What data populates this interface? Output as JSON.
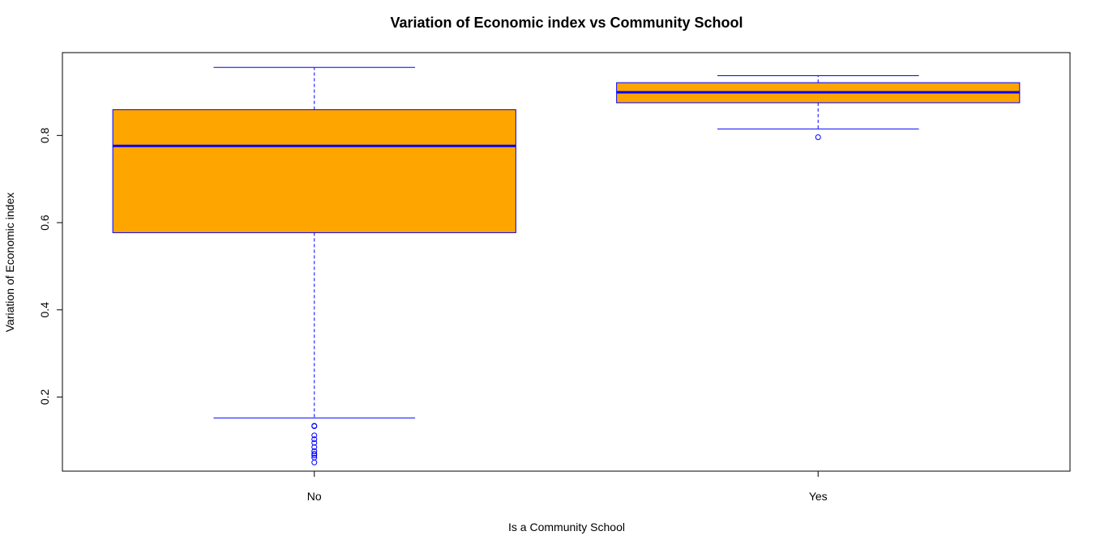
{
  "chart_data": {
    "type": "box",
    "title": "Variation of Economic index vs Community School",
    "xlabel": "Is a Community School",
    "ylabel": "Variation of Economic index",
    "categories": [
      "No",
      "Yes"
    ],
    "ylim": [
      0.03,
      0.99
    ],
    "yticks": [
      0.2,
      0.4,
      0.6,
      0.8
    ],
    "ytick_labels": [
      "0.2",
      "0.4",
      "0.6",
      "0.8"
    ],
    "grid": false,
    "boxes": [
      {
        "category": "No",
        "whisker_low": 0.152,
        "q1": 0.577,
        "median": 0.776,
        "q3": 0.859,
        "whisker_high": 0.956,
        "outliers": [
          0.134,
          0.133,
          0.112,
          0.103,
          0.095,
          0.085,
          0.076,
          0.07,
          0.066,
          0.061,
          0.05
        ]
      },
      {
        "category": "Yes",
        "whisker_low": 0.815,
        "q1": 0.875,
        "median": 0.899,
        "q3": 0.921,
        "whisker_high": 0.937,
        "outliers": [
          0.796
        ]
      }
    ],
    "colors": {
      "box_fill": "#FFA500",
      "box_border": "#0000FF",
      "median": "#0000FF",
      "whisker": "#0000FF",
      "outlier": "#0000FF",
      "frame": "#000000"
    }
  }
}
